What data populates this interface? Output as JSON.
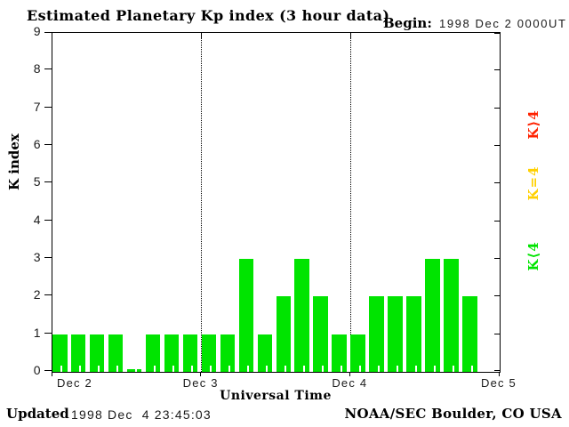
{
  "header": {
    "title": "Estimated Planetary Kp index (3 hour data)",
    "begin_label": "Begin:",
    "begin_value": "1998 Dec 2 0000UT"
  },
  "chart_data": {
    "type": "bar",
    "title": "Estimated Planetary Kp index (3 hour data)",
    "begin": "1998 Dec 2 0000UT",
    "xlabel": "Universal Time",
    "ylabel": "K index",
    "ylim": [
      0,
      9
    ],
    "yticks": [
      0,
      1,
      2,
      3,
      4,
      5,
      6,
      7,
      8,
      9
    ],
    "x_day_labels": [
      "Dec 2",
      "Dec 3",
      "Dec 4",
      "Dec 5"
    ],
    "hours_per_bar": 3,
    "bars_per_day": 8,
    "values": [
      1,
      1,
      1,
      1,
      0,
      1,
      1,
      1,
      1,
      1,
      3,
      1,
      2,
      3,
      2,
      1,
      1,
      2,
      2,
      2,
      3,
      3,
      2
    ],
    "colors": {
      "k_lt_4": "#00e400",
      "k_eq_4": "#ffd000",
      "k_gt_4": "#ff2200",
      "axis": "#000000"
    },
    "legend": [
      {
        "label": "K⟩4",
        "color": "#ff2200"
      },
      {
        "label": "K=4",
        "color": "#ffd000"
      },
      {
        "label": "K⟨4",
        "color": "#00e400"
      }
    ],
    "grid": "dotted vertical lines at day boundaries",
    "legend_position": "right, rotated 90deg"
  },
  "footer": {
    "updated_label": "Updated",
    "updated_value": "1998 Dec  4 23:45:03",
    "credit": "NOAA/SEC Boulder, CO USA"
  }
}
